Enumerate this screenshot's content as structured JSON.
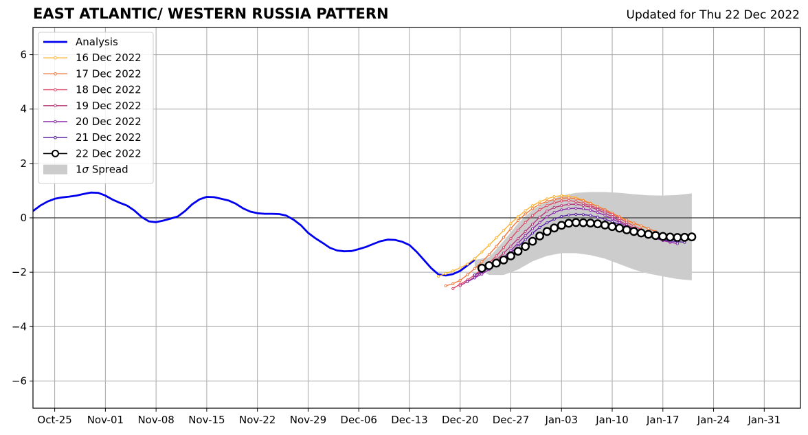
{
  "chart_data": {
    "type": "line",
    "title": "EAST ATLANTIC/ WESTERN RUSSIA PATTERN",
    "subtitle": "Updated for Thu 22 Dec 2022",
    "xlabel": "",
    "ylabel": "",
    "x_axis": {
      "type": "date",
      "start": "2022-10-22",
      "end": "2023-02-05"
    },
    "ylim": [
      -7,
      7
    ],
    "yticks": [
      -6,
      -4,
      -2,
      0,
      2,
      4,
      6
    ],
    "ytick_labels": [
      "−6",
      "−4",
      "−2",
      "0",
      "2",
      "4",
      "6"
    ],
    "xticks": [
      {
        "date": "2022-10-25",
        "label": "Oct-25"
      },
      {
        "date": "2022-11-01",
        "label": "Nov-01"
      },
      {
        "date": "2022-11-08",
        "label": "Nov-08"
      },
      {
        "date": "2022-11-15",
        "label": "Nov-15"
      },
      {
        "date": "2022-11-22",
        "label": "Nov-22"
      },
      {
        "date": "2022-11-29",
        "label": "Nov-29"
      },
      {
        "date": "2022-12-06",
        "label": "Dec-06"
      },
      {
        "date": "2022-12-13",
        "label": "Dec-13"
      },
      {
        "date": "2022-12-20",
        "label": "Dec-20"
      },
      {
        "date": "2022-12-27",
        "label": "Dec-27"
      },
      {
        "date": "2023-01-03",
        "label": "Jan-03"
      },
      {
        "date": "2023-01-10",
        "label": "Jan-10"
      },
      {
        "date": "2023-01-17",
        "label": "Jan-17"
      },
      {
        "date": "2023-01-24",
        "label": "Jan-24"
      },
      {
        "date": "2023-01-31",
        "label": "Jan-31"
      }
    ],
    "grid": true,
    "legend_position": "top-left",
    "legend_spread_prefix": "1",
    "legend_spread_sigma": "σ",
    "legend_spread_suffix": " Spread",
    "analysis": {
      "name": "Analysis",
      "color": "#0000ee",
      "points": [
        [
          "2022-10-22",
          0.25
        ],
        [
          "2022-10-23",
          0.45
        ],
        [
          "2022-10-24",
          0.6
        ],
        [
          "2022-10-25",
          0.7
        ],
        [
          "2022-10-26",
          0.75
        ],
        [
          "2022-10-27",
          0.78
        ],
        [
          "2022-10-28",
          0.82
        ],
        [
          "2022-10-29",
          0.88
        ],
        [
          "2022-10-30",
          0.93
        ],
        [
          "2022-10-31",
          0.92
        ],
        [
          "2022-11-01",
          0.82
        ],
        [
          "2022-11-02",
          0.67
        ],
        [
          "2022-11-03",
          0.55
        ],
        [
          "2022-11-04",
          0.45
        ],
        [
          "2022-11-05",
          0.27
        ],
        [
          "2022-11-06",
          0.03
        ],
        [
          "2022-11-07",
          -0.13
        ],
        [
          "2022-11-08",
          -0.16
        ],
        [
          "2022-11-09",
          -0.1
        ],
        [
          "2022-11-10",
          -0.03
        ],
        [
          "2022-11-11",
          0.05
        ],
        [
          "2022-11-12",
          0.25
        ],
        [
          "2022-11-13",
          0.5
        ],
        [
          "2022-11-14",
          0.68
        ],
        [
          "2022-11-15",
          0.77
        ],
        [
          "2022-11-16",
          0.76
        ],
        [
          "2022-11-17",
          0.7
        ],
        [
          "2022-11-18",
          0.64
        ],
        [
          "2022-11-19",
          0.52
        ],
        [
          "2022-11-20",
          0.35
        ],
        [
          "2022-11-21",
          0.23
        ],
        [
          "2022-11-22",
          0.17
        ],
        [
          "2022-11-23",
          0.15
        ],
        [
          "2022-11-24",
          0.15
        ],
        [
          "2022-11-25",
          0.14
        ],
        [
          "2022-11-26",
          0.08
        ],
        [
          "2022-11-27",
          -0.07
        ],
        [
          "2022-11-28",
          -0.27
        ],
        [
          "2022-11-29",
          -0.55
        ],
        [
          "2022-11-30",
          -0.75
        ],
        [
          "2022-12-01",
          -0.92
        ],
        [
          "2022-12-02",
          -1.1
        ],
        [
          "2022-12-03",
          -1.2
        ],
        [
          "2022-12-04",
          -1.23
        ],
        [
          "2022-12-05",
          -1.22
        ],
        [
          "2022-12-06",
          -1.15
        ],
        [
          "2022-12-07",
          -1.07
        ],
        [
          "2022-12-08",
          -0.96
        ],
        [
          "2022-12-09",
          -0.86
        ],
        [
          "2022-12-10",
          -0.8
        ],
        [
          "2022-12-11",
          -0.81
        ],
        [
          "2022-12-12",
          -0.88
        ],
        [
          "2022-12-13",
          -1.0
        ],
        [
          "2022-12-14",
          -1.25
        ],
        [
          "2022-12-15",
          -1.55
        ],
        [
          "2022-12-16",
          -1.85
        ],
        [
          "2022-12-17",
          -2.08
        ],
        [
          "2022-12-18",
          -2.12
        ],
        [
          "2022-12-19",
          -2.07
        ],
        [
          "2022-12-20",
          -1.95
        ],
        [
          "2022-12-21",
          -1.75
        ],
        [
          "2022-12-22",
          -1.55
        ]
      ]
    },
    "spread": {
      "name": "1σ Spread",
      "color": "#cccccc",
      "x": [
        "2022-12-22",
        "2022-12-24",
        "2022-12-26",
        "2022-12-28",
        "2022-12-30",
        "2023-01-01",
        "2023-01-03",
        "2023-01-05",
        "2023-01-07",
        "2023-01-09",
        "2023-01-11",
        "2023-01-13",
        "2023-01-15",
        "2023-01-17",
        "2023-01-19",
        "2023-01-21"
      ],
      "upper": [
        -1.55,
        -1.45,
        -0.85,
        -0.2,
        0.3,
        0.6,
        0.82,
        0.92,
        0.95,
        0.95,
        0.92,
        0.87,
        0.83,
        0.82,
        0.84,
        0.9
      ],
      "lower": [
        -1.8,
        -2.1,
        -2.1,
        -1.9,
        -1.6,
        -1.4,
        -1.3,
        -1.3,
        -1.37,
        -1.5,
        -1.7,
        -1.9,
        -2.05,
        -2.15,
        -2.25,
        -2.3
      ]
    },
    "series": [
      {
        "name": "16 Dec 2022",
        "color": "#fbb431",
        "start": "2022-12-17",
        "end": "2023-01-15",
        "knots": [
          [
            "2022-12-17",
            -2.15
          ],
          [
            "2022-12-21",
            -1.7
          ],
          [
            "2022-12-24",
            -1.0
          ],
          [
            "2022-12-27",
            -0.2
          ],
          [
            "2022-12-30",
            0.45
          ],
          [
            "2023-01-02",
            0.78
          ],
          [
            "2023-01-04",
            0.8
          ],
          [
            "2023-01-06",
            0.65
          ],
          [
            "2023-01-09",
            0.3
          ],
          [
            "2023-01-12",
            -0.1
          ],
          [
            "2023-01-15",
            -0.4
          ]
        ]
      },
      {
        "name": "17 Dec 2022",
        "color": "#f1763c",
        "start": "2022-12-18",
        "end": "2023-01-16",
        "knots": [
          [
            "2022-12-18",
            -2.5
          ],
          [
            "2022-12-20",
            -2.3
          ],
          [
            "2022-12-24",
            -1.35
          ],
          [
            "2022-12-28",
            -0.1
          ],
          [
            "2022-12-31",
            0.5
          ],
          [
            "2023-01-03",
            0.72
          ],
          [
            "2023-01-05",
            0.7
          ],
          [
            "2023-01-08",
            0.42
          ],
          [
            "2023-01-12",
            -0.08
          ],
          [
            "2023-01-16",
            -0.5
          ]
        ]
      },
      {
        "name": "18 Dec 2022",
        "color": "#dd4968",
        "start": "2022-12-19",
        "end": "2023-01-17",
        "knots": [
          [
            "2022-12-19",
            -2.6
          ],
          [
            "2022-12-22",
            -2.1
          ],
          [
            "2022-12-25",
            -1.4
          ],
          [
            "2022-12-28",
            -0.45
          ],
          [
            "2022-12-31",
            0.3
          ],
          [
            "2023-01-03",
            0.62
          ],
          [
            "2023-01-05",
            0.6
          ],
          [
            "2023-01-09",
            0.25
          ],
          [
            "2023-01-13",
            -0.3
          ],
          [
            "2023-01-17",
            -0.8
          ]
        ]
      },
      {
        "name": "19 Dec 2022",
        "color": "#b5367a",
        "start": "2022-12-20",
        "end": "2023-01-18",
        "knots": [
          [
            "2022-12-20",
            -2.5
          ],
          [
            "2022-12-23",
            -2.0
          ],
          [
            "2022-12-26",
            -1.3
          ],
          [
            "2022-12-29",
            -0.5
          ],
          [
            "2023-01-01",
            0.25
          ],
          [
            "2023-01-03",
            0.45
          ],
          [
            "2023-01-05",
            0.5
          ],
          [
            "2023-01-08",
            0.3
          ],
          [
            "2023-01-12",
            -0.25
          ],
          [
            "2023-01-16",
            -0.75
          ],
          [
            "2023-01-18",
            -0.9
          ]
        ]
      },
      {
        "name": "20 Dec 2022",
        "color": "#8c29a8",
        "start": "2022-12-21",
        "end": "2023-01-19",
        "knots": [
          [
            "2022-12-21",
            -2.35
          ],
          [
            "2022-12-24",
            -1.9
          ],
          [
            "2022-12-27",
            -1.2
          ],
          [
            "2022-12-30",
            -0.4
          ],
          [
            "2023-01-02",
            0.2
          ],
          [
            "2023-01-05",
            0.35
          ],
          [
            "2023-01-08",
            0.2
          ],
          [
            "2023-01-12",
            -0.3
          ],
          [
            "2023-01-16",
            -0.75
          ],
          [
            "2023-01-19",
            -0.95
          ]
        ]
      },
      {
        "name": "21 Dec 2022",
        "color": "#551ca0",
        "start": "2022-12-22",
        "end": "2023-01-20",
        "knots": [
          [
            "2022-12-22",
            -2.1
          ],
          [
            "2022-12-25",
            -1.7
          ],
          [
            "2022-12-28",
            -1.05
          ],
          [
            "2022-12-31",
            -0.35
          ],
          [
            "2023-01-03",
            0.05
          ],
          [
            "2023-01-06",
            0.12
          ],
          [
            "2023-01-09",
            -0.05
          ],
          [
            "2023-01-13",
            -0.45
          ],
          [
            "2023-01-17",
            -0.8
          ],
          [
            "2023-01-20",
            -0.9
          ]
        ]
      },
      {
        "name": "22 Dec 2022",
        "color": "#000000",
        "start": "2022-12-23",
        "end": "2023-01-21",
        "knots": [
          [
            "2022-12-23",
            -1.85
          ],
          [
            "2022-12-26",
            -1.55
          ],
          [
            "2022-12-29",
            -1.05
          ],
          [
            "2023-01-01",
            -0.5
          ],
          [
            "2023-01-04",
            -0.2
          ],
          [
            "2023-01-06",
            -0.18
          ],
          [
            "2023-01-08",
            -0.22
          ],
          [
            "2023-01-10",
            -0.32
          ],
          [
            "2023-01-13",
            -0.5
          ],
          [
            "2023-01-16",
            -0.65
          ],
          [
            "2023-01-19",
            -0.72
          ],
          [
            "2023-01-21",
            -0.7
          ]
        ]
      }
    ]
  }
}
